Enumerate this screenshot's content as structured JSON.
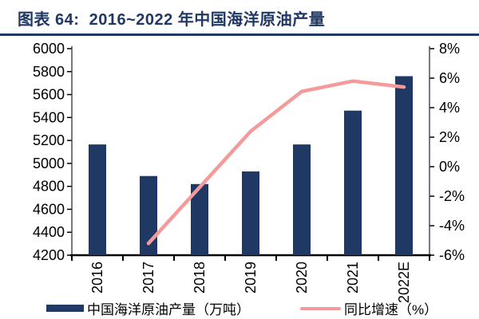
{
  "title": "图表 64:  2016~2022 年中国海洋原油产量",
  "colors": {
    "navy": "#1F3864",
    "pink": "#F49A9A",
    "bottom_axis": "#000000",
    "side_axis": "#404040",
    "tick_text": "#000000"
  },
  "chart_data": {
    "type": "bar+line",
    "title": "2016~2022 年中国海洋原油产量",
    "categories": [
      "2016",
      "2017",
      "2018",
      "2019",
      "2020",
      "2021",
      "2022E"
    ],
    "series": [
      {
        "name": "中国海洋原油产量（万吨）",
        "type": "bar",
        "axis": "left",
        "color": "#1F3864",
        "values": [
          5165,
          4890,
          4820,
          4930,
          5165,
          5460,
          5760
        ]
      },
      {
        "name": "同比增速（%）",
        "type": "line",
        "axis": "right",
        "color": "#F49A9A",
        "values": [
          null,
          -5.2,
          -1.4,
          2.4,
          5.1,
          5.8,
          5.4
        ]
      }
    ],
    "left_axis": {
      "min": 4200,
      "max": 6000,
      "step": 200,
      "tick_labels": [
        "6000",
        "5800",
        "5600",
        "5400",
        "5200",
        "5000",
        "4800",
        "4600",
        "4400",
        "4200"
      ]
    },
    "right_axis": {
      "min": -6,
      "max": 8,
      "step": 2,
      "tick_labels": [
        "8%",
        "6%",
        "4%",
        "2%",
        "0%",
        "-2%",
        "-4%",
        "-6%"
      ]
    },
    "grid": false,
    "legend_position": "bottom"
  }
}
